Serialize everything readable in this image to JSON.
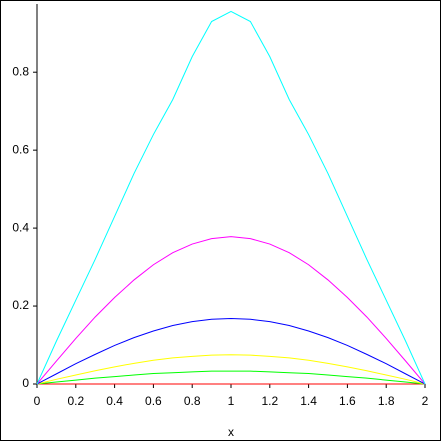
{
  "chart_data": {
    "type": "line",
    "x_label": "x",
    "x": [
      0,
      0.1,
      0.2,
      0.3,
      0.4,
      0.5,
      0.6,
      0.7,
      0.8,
      0.9,
      1,
      1.1,
      1.2,
      1.3,
      1.4,
      1.5,
      1.6,
      1.7,
      1.8,
      1.9,
      2
    ],
    "series": [
      {
        "color": "#ff0000",
        "values": [
          0,
          0,
          0,
          0,
          0,
          0,
          0,
          0,
          0,
          0,
          0,
          0,
          0,
          0,
          0,
          0,
          0,
          0,
          0,
          0,
          0
        ]
      },
      {
        "color": "#00ff00",
        "values": [
          0,
          0.005,
          0.01,
          0.015,
          0.019,
          0.023,
          0.027,
          0.029,
          0.031,
          0.033,
          0.033,
          0.033,
          0.031,
          0.029,
          0.027,
          0.023,
          0.019,
          0.015,
          0.01,
          0.005,
          0
        ]
      },
      {
        "color": "#ffff00",
        "values": [
          0,
          0.012,
          0.023,
          0.034,
          0.044,
          0.053,
          0.061,
          0.067,
          0.071,
          0.074,
          0.075,
          0.074,
          0.071,
          0.067,
          0.061,
          0.053,
          0.044,
          0.034,
          0.023,
          0.012,
          0
        ]
      },
      {
        "color": "#0000ff",
        "values": [
          0,
          0.026,
          0.052,
          0.076,
          0.099,
          0.119,
          0.136,
          0.15,
          0.16,
          0.166,
          0.168,
          0.166,
          0.16,
          0.15,
          0.136,
          0.119,
          0.099,
          0.076,
          0.052,
          0.026,
          0
        ]
      },
      {
        "color": "#ff00ff",
        "values": [
          0,
          0.059,
          0.117,
          0.172,
          0.222,
          0.267,
          0.306,
          0.337,
          0.359,
          0.373,
          0.378,
          0.373,
          0.359,
          0.337,
          0.306,
          0.267,
          0.222,
          0.172,
          0.117,
          0.059,
          0
        ]
      },
      {
        "color": "#00ffff",
        "values": [
          0,
          0.11,
          0.215,
          0.32,
          0.43,
          0.54,
          0.64,
          0.73,
          0.84,
          0.93,
          0.956,
          0.93,
          0.84,
          0.73,
          0.64,
          0.54,
          0.43,
          0.32,
          0.215,
          0.11,
          0
        ]
      }
    ],
    "xlim": [
      0,
      2
    ],
    "ylim": [
      0,
      0.975
    ],
    "xticks": [
      0,
      0.2,
      0.4,
      0.6,
      0.8,
      1,
      1.2,
      1.4,
      1.6,
      1.8,
      2
    ],
    "yticks": [
      0,
      0.2,
      0.4,
      0.6,
      0.8
    ]
  }
}
